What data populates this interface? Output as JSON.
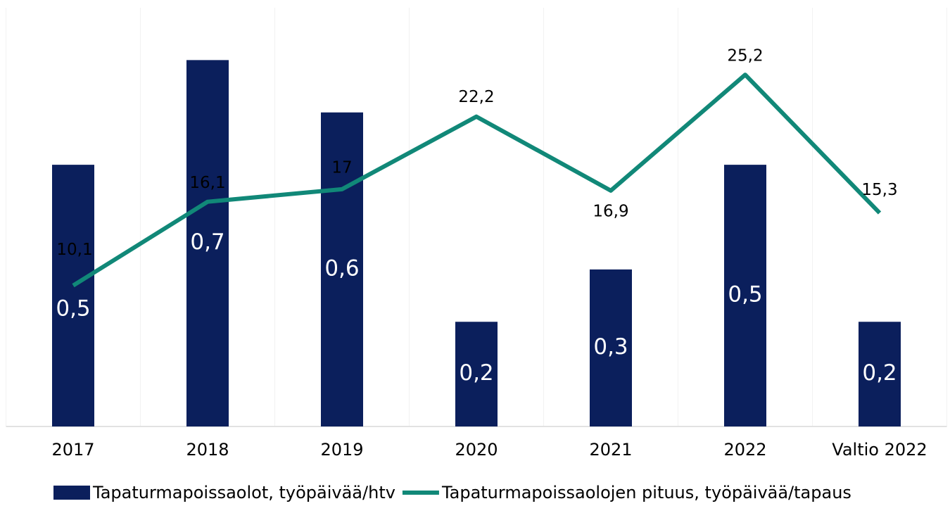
{
  "chart_data": {
    "type": "bar",
    "categories": [
      "2017",
      "2018",
      "2019",
      "2020",
      "2021",
      "2022",
      "Valtio 2022"
    ],
    "series": [
      {
        "name": "Tapaturmapoissaolot, työpäivää/htv",
        "type": "bar",
        "color": "#0b1f5c",
        "values": [
          0.5,
          0.7,
          0.6,
          0.2,
          0.3,
          0.5,
          0.2
        ],
        "value_labels": [
          "0,5",
          "0,7",
          "0,6",
          "0,2",
          "0,3",
          "0,5",
          "0,2"
        ]
      },
      {
        "name": "Tapaturmapoissaolojen pituus, työpäivää/tapaus",
        "type": "line",
        "color": "#118878",
        "axis": "y2",
        "values": [
          10.1,
          16.1,
          17,
          22.2,
          16.9,
          25.2,
          15.3
        ],
        "value_labels": [
          "10,1",
          "16,1",
          "17",
          "22,2",
          "16,9",
          "25,2",
          "15,3"
        ]
      }
    ],
    "ylim": [
      0,
      0.8
    ],
    "y2lim": [
      0,
      30
    ],
    "legend": "bottom"
  }
}
